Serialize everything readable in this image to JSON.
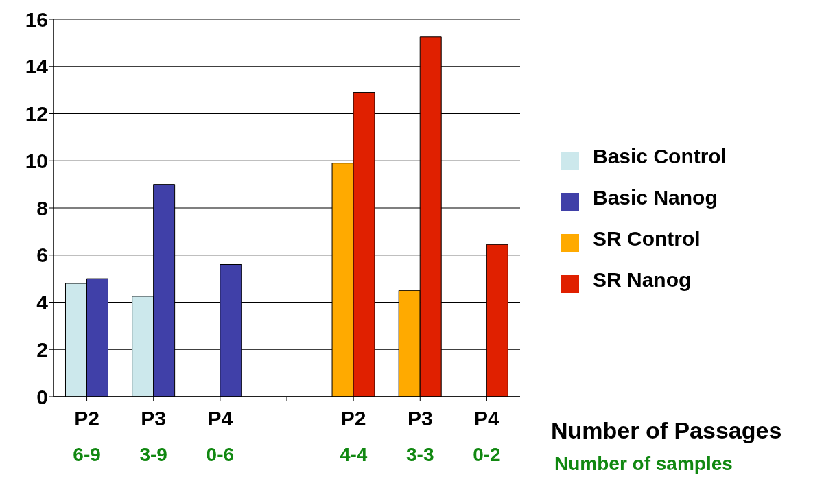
{
  "chart_data": {
    "type": "bar",
    "categories": [
      "P2",
      "P3",
      "P4",
      null,
      "P2",
      "P3",
      "P4"
    ],
    "xlabel": "Number of Passages",
    "series": [
      {
        "name": "Basic Control",
        "color": "#cce8ec",
        "values": [
          4.8,
          4.25,
          0,
          null,
          null,
          null,
          null
        ]
      },
      {
        "name": "Basic Nanog",
        "color": "#4040a8",
        "values": [
          5.0,
          9.0,
          5.6,
          null,
          null,
          null,
          null
        ]
      },
      {
        "name": "SR Control",
        "color": "#ffaa00",
        "values": [
          null,
          null,
          null,
          null,
          9.9,
          4.5,
          0
        ]
      },
      {
        "name": "SR Nanog",
        "color": "#e02000",
        "values": [
          null,
          null,
          null,
          null,
          12.9,
          15.25,
          6.45
        ]
      }
    ],
    "ylim": [
      0,
      16
    ],
    "yticks": [
      0,
      2,
      4,
      6,
      8,
      10,
      12,
      14,
      16
    ],
    "grid": "y",
    "legend": "right",
    "annotations": [
      "6-9",
      "3-9",
      "0-6",
      "4-4",
      "3-3",
      "0-2",
      "Number of samples"
    ]
  }
}
